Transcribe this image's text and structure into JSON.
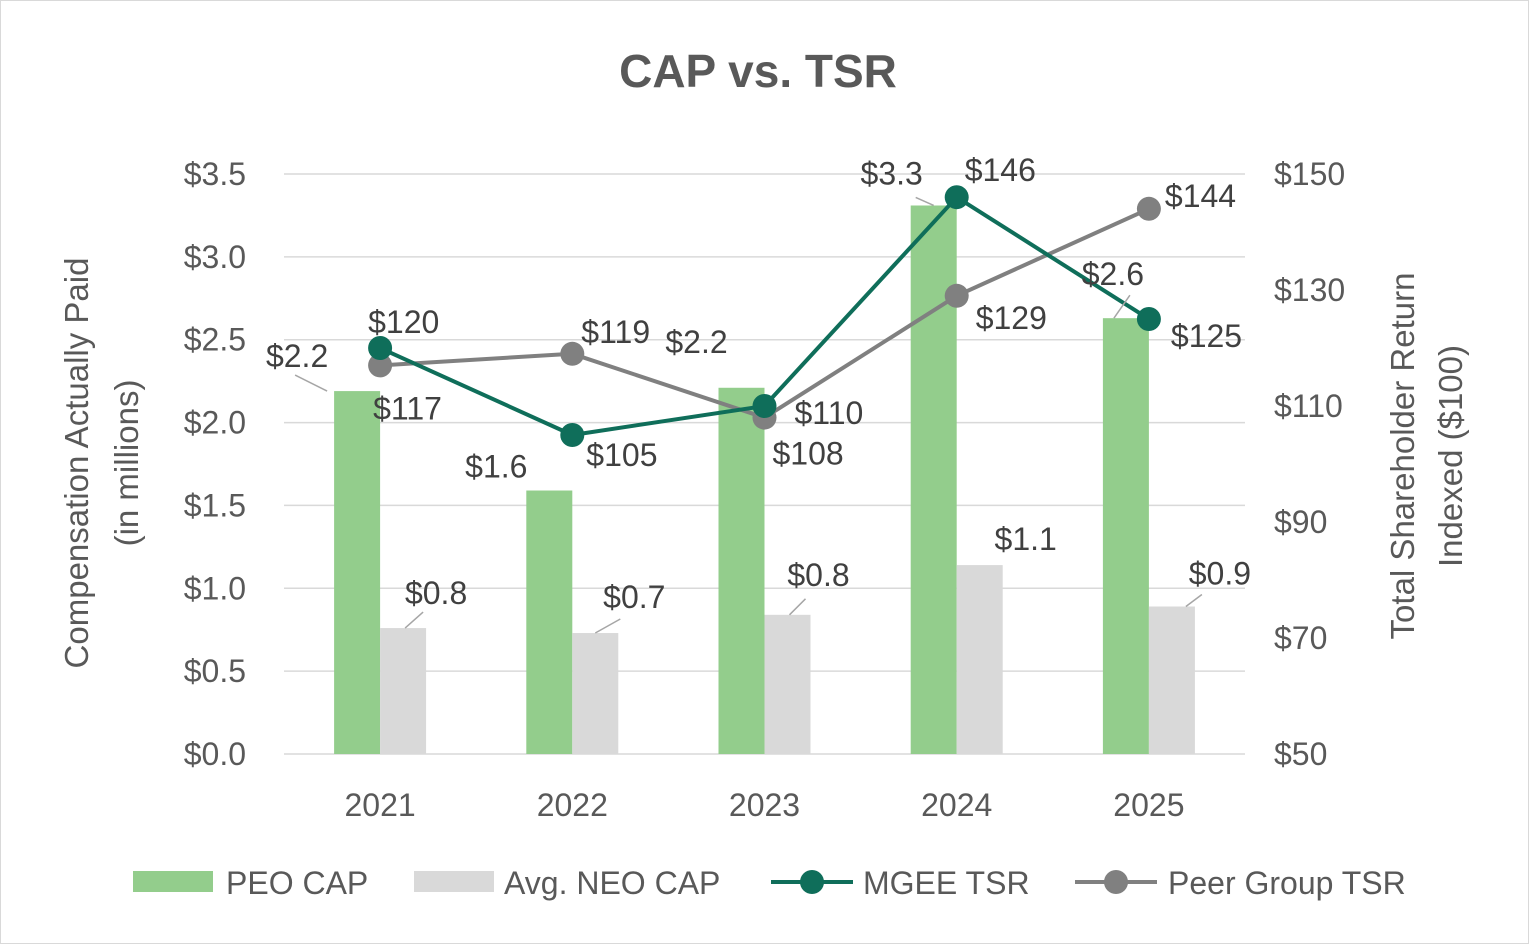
{
  "chart_data": {
    "type": "bar",
    "title": "CAP vs. TSR",
    "categories": [
      "2021",
      "2022",
      "2023",
      "2024",
      "2025"
    ],
    "y_left": {
      "label_line1": "Compensation Actually Paid",
      "label_line2": "(in millions)",
      "range": [
        0,
        3.5
      ],
      "ticks": [
        0,
        0.5,
        1.0,
        1.5,
        2.0,
        2.5,
        3.0,
        3.5
      ],
      "tick_labels": [
        "$0.0",
        "$0.5",
        "$1.0",
        "$1.5",
        "$2.0",
        "$2.5",
        "$3.0",
        "$3.5"
      ]
    },
    "y_right": {
      "label_line1": "Total Shareholder Return",
      "label_line2": "Indexed ($100)",
      "range": [
        50,
        150
      ],
      "ticks": [
        50,
        70,
        90,
        110,
        130,
        150
      ],
      "tick_labels": [
        "$50",
        "$70",
        "$90",
        "$110",
        "$130",
        "$150"
      ]
    },
    "grid": true,
    "legend_position": "bottom",
    "series": [
      {
        "name": "PEO CAP",
        "kind": "bar",
        "axis": "left",
        "color": "#93cd8c",
        "values": [
          2.19,
          1.59,
          2.21,
          3.31,
          2.63
        ],
        "labels": [
          "$2.2",
          "$1.6",
          "$2.2",
          "$3.3",
          "$2.6"
        ]
      },
      {
        "name": "Avg. NEO CAP",
        "kind": "bar",
        "axis": "left",
        "color": "#d9d9d9",
        "values": [
          0.76,
          0.73,
          0.84,
          1.14,
          0.89
        ],
        "labels": [
          "$0.8",
          "$0.7",
          "$0.8",
          "$1.1",
          "$0.9"
        ]
      },
      {
        "name": "MGEE TSR",
        "kind": "line",
        "axis": "right",
        "color": "#0f6e5a",
        "values": [
          120,
          105,
          110,
          146,
          125
        ],
        "labels": [
          "$120",
          "$105",
          "$110",
          "$146",
          "$125"
        ]
      },
      {
        "name": "Peer Group TSR",
        "kind": "line",
        "axis": "right",
        "color": "#808080",
        "values": [
          117,
          119,
          108,
          129,
          144
        ],
        "labels": [
          "$117",
          "$119",
          "$108",
          "$129",
          "$144"
        ]
      }
    ]
  }
}
